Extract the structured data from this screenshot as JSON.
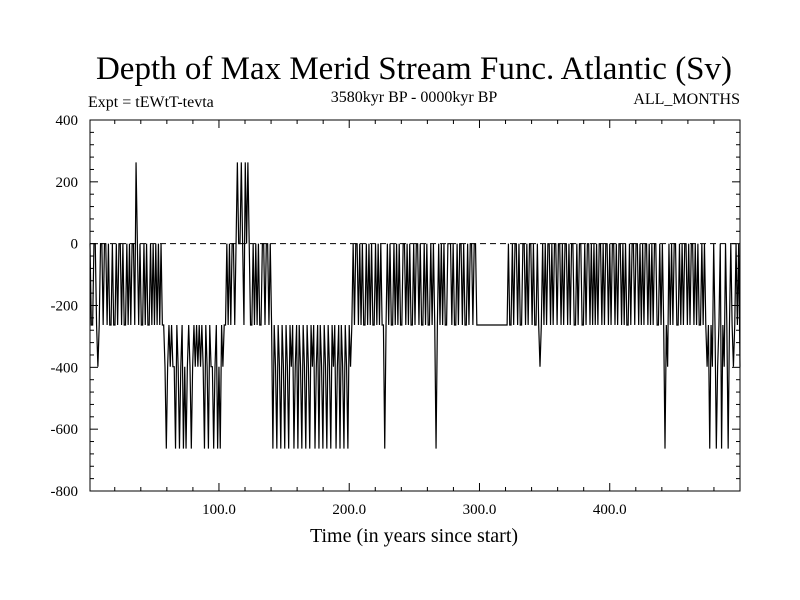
{
  "chart_data": {
    "type": "line",
    "title": "Depth of Max Merid Stream Func. Atlantic (Sv)",
    "subtitle_left": "Expt = tEWtT-tevta",
    "subtitle_center": "3580kyr BP - 0000kyr BP",
    "subtitle_right": "ALL_MONTHS",
    "xlabel": "Time (in years since start)",
    "ylabel": "",
    "xlim": [
      1,
      500
    ],
    "ylim": [
      -800,
      400
    ],
    "x_ticks": [
      100,
      200,
      300,
      400
    ],
    "x_tick_labels": [
      "100.0",
      "200.0",
      "300.0",
      "400.0"
    ],
    "y_ticks": [
      -800,
      -600,
      -400,
      -200,
      0,
      200,
      400
    ],
    "y_tick_labels": [
      "-800",
      "-600",
      "-400",
      "-200",
      "0",
      "200",
      "400"
    ],
    "grid": false,
    "legend": "none",
    "line_color": "#000000",
    "reference_line": {
      "y": 0,
      "style": "dashed"
    },
    "series": [
      {
        "values": [
          0,
          -263,
          -263,
          0,
          0,
          -263,
          -398,
          -263,
          0,
          0,
          -263,
          0,
          0,
          -263,
          0,
          -263,
          -263,
          0,
          -263,
          -263,
          0,
          -263,
          0,
          0,
          -263,
          0,
          -263,
          -263,
          0,
          -263,
          0,
          -263,
          0,
          0,
          -263,
          263,
          0,
          -263,
          0,
          -263,
          -263,
          0,
          -263,
          0,
          -263,
          -263,
          0,
          -263,
          0,
          -263,
          0,
          -263,
          0,
          -263,
          0,
          -263,
          -263,
          -398,
          -663,
          -398,
          -263,
          -398,
          -263,
          -398,
          -398,
          -663,
          -263,
          -398,
          -663,
          -398,
          -263,
          -663,
          -398,
          -663,
          -398,
          -263,
          -398,
          -663,
          -398,
          -263,
          -398,
          -263,
          -398,
          -263,
          -398,
          -263,
          -398,
          -663,
          -263,
          -398,
          -663,
          -263,
          -398,
          -398,
          -663,
          -398,
          -263,
          -663,
          -398,
          -663,
          -263,
          -398,
          -263,
          -263,
          0,
          -263,
          0,
          -263,
          0,
          0,
          -263,
          0,
          263,
          0,
          0,
          263,
          0,
          -263,
          263,
          0,
          263,
          0,
          -263,
          -263,
          0,
          -263,
          0,
          -263,
          0,
          -263,
          -263,
          0,
          0,
          -263,
          0,
          0,
          -263,
          0,
          -263,
          -663,
          -263,
          -398,
          -663,
          -263,
          -398,
          -663,
          -263,
          -398,
          -663,
          -263,
          -398,
          -663,
          -263,
          -398,
          -263,
          -663,
          -398,
          -263,
          -663,
          -263,
          -398,
          -663,
          -263,
          -398,
          -663,
          -263,
          -398,
          -663,
          -263,
          -398,
          -263,
          -663,
          -398,
          -263,
          -663,
          -263,
          -398,
          -663,
          -263,
          -398,
          -663,
          -263,
          -398,
          -663,
          -263,
          -398,
          -263,
          -663,
          -398,
          -263,
          -663,
          -263,
          -398,
          -663,
          -263,
          -398,
          -663,
          -263,
          -398,
          -263,
          0,
          -263,
          0,
          0,
          -263,
          0,
          -263,
          0,
          -263,
          -263,
          0,
          -263,
          0,
          -263,
          0,
          -263,
          -263,
          0,
          -263,
          0,
          -263,
          0,
          -263,
          -263,
          -663,
          -263,
          0,
          -263,
          0,
          -263,
          -263,
          0,
          -263,
          0,
          -263,
          0,
          -263,
          -263,
          0,
          0,
          -263,
          0,
          -263,
          0,
          -263,
          -263,
          0,
          -263,
          0,
          0,
          -263,
          0,
          -263,
          -263,
          0,
          -263,
          0,
          -263,
          -263,
          0,
          -263,
          0,
          -263,
          -663,
          -263,
          0,
          -263,
          0,
          -263,
          0,
          -263,
          -263,
          0,
          0,
          0,
          -263,
          0,
          -263,
          -263,
          0,
          -263,
          0,
          0,
          -263,
          0,
          -263,
          -263,
          0,
          -263,
          0,
          0,
          -263,
          0,
          0,
          -263,
          -263,
          -263,
          -263,
          -263,
          -263,
          -263,
          -263,
          -263,
          -263,
          -263,
          -263,
          -263,
          -263,
          -263,
          -263,
          -263,
          -263,
          -263,
          -263,
          -263,
          -263,
          -263,
          -263,
          0,
          -263,
          -263,
          0,
          -263,
          0,
          0,
          -263,
          0,
          -263,
          -263,
          0,
          0,
          -263,
          0,
          -263,
          0,
          0,
          -263,
          0,
          -263,
          -263,
          0,
          -263,
          -398,
          -263,
          0,
          -263,
          0,
          -263,
          0,
          0,
          -263,
          0,
          -263,
          0,
          0,
          -263,
          0,
          0,
          -263,
          0,
          -263,
          0,
          0,
          -263,
          0,
          -263,
          0,
          0,
          -263,
          -263,
          0,
          -263,
          0,
          0,
          -263,
          -263,
          0,
          -263,
          0,
          0,
          -263,
          0,
          -263,
          0,
          -263,
          0,
          -263,
          0,
          0,
          -263,
          0,
          -263,
          0,
          0,
          -263,
          0,
          -263,
          0,
          0,
          -263,
          0,
          -263,
          0,
          0,
          -263,
          0,
          -263,
          0,
          -263,
          -263,
          0,
          -263,
          0,
          0,
          -263,
          0,
          0,
          -263,
          0,
          -263,
          0,
          -263,
          0,
          0,
          -263,
          0,
          -263,
          0,
          -263,
          0,
          0,
          -263,
          -263,
          0,
          -263,
          0,
          -263,
          -663,
          -263,
          -398,
          0,
          -263,
          0,
          -263,
          0,
          0,
          -263,
          -263,
          0,
          -263,
          0,
          -263,
          0,
          0,
          -263,
          0,
          -263,
          0,
          0,
          -263,
          0,
          -263,
          0,
          -263,
          -263,
          0,
          -263,
          0,
          -263,
          -398,
          -263,
          -663,
          -263,
          -398,
          0,
          -263,
          -663,
          -398,
          -263,
          0,
          -663,
          -263,
          -398,
          0,
          -263,
          -663,
          -263,
          0,
          -263,
          -398,
          -263,
          0,
          -263,
          0,
          -398
        ]
      }
    ]
  }
}
